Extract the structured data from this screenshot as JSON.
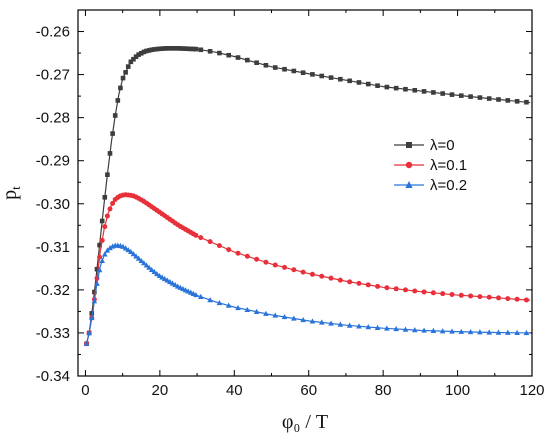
{
  "chart_data": {
    "type": "line",
    "xlabel": "φ₀ / T",
    "ylabel_main": "p",
    "ylabel_sub": "t",
    "xlim": [
      -2,
      120
    ],
    "ylim": [
      -0.34,
      -0.255
    ],
    "x_ticks": [
      0,
      20,
      40,
      60,
      80,
      100,
      120
    ],
    "y_ticks": [
      -0.34,
      -0.33,
      -0.32,
      -0.31,
      -0.3,
      -0.29,
      -0.28,
      -0.27,
      -0.26
    ],
    "x_tick_labels": [
      "0",
      "20",
      "40",
      "60",
      "80",
      "100",
      "120"
    ],
    "y_tick_labels": [
      "-0.34",
      "-0.33",
      "-0.32",
      "-0.31",
      "-0.30",
      "-0.29",
      "-0.28",
      "-0.27",
      "-0.26"
    ],
    "grid": false,
    "legend_position": "center-right",
    "series": [
      {
        "name": "λ=0",
        "color": "#3d3d3d",
        "marker": "square",
        "points": [
          [
            0.3,
            -0.3325
          ],
          [
            1,
            -0.33
          ],
          [
            2,
            -0.3235
          ],
          [
            3,
            -0.316
          ],
          [
            4,
            -0.308
          ],
          [
            5,
            -0.3
          ],
          [
            6,
            -0.2925
          ],
          [
            7,
            -0.2855
          ],
          [
            8,
            -0.2795
          ],
          [
            9,
            -0.2745
          ],
          [
            10,
            -0.271
          ],
          [
            12,
            -0.2672
          ],
          [
            14,
            -0.2655
          ],
          [
            16,
            -0.2646
          ],
          [
            18,
            -0.2642
          ],
          [
            20,
            -0.264
          ],
          [
            22,
            -0.2639
          ],
          [
            25,
            -0.2639
          ],
          [
            30,
            -0.2641
          ],
          [
            35,
            -0.2648
          ],
          [
            40,
            -0.2658
          ],
          [
            45,
            -0.267
          ],
          [
            50,
            -0.2682
          ],
          [
            60,
            -0.2698
          ],
          [
            70,
            -0.2713
          ],
          [
            80,
            -0.2728
          ],
          [
            90,
            -0.2738
          ],
          [
            100,
            -0.2748
          ],
          [
            110,
            -0.2757
          ],
          [
            119.5,
            -0.2765
          ]
        ]
      },
      {
        "name": "λ=0.1",
        "color": "#e8303a",
        "marker": "circle",
        "points": [
          [
            0.3,
            -0.3325
          ],
          [
            1,
            -0.33
          ],
          [
            2,
            -0.325
          ],
          [
            3,
            -0.318
          ],
          [
            4,
            -0.311
          ],
          [
            5,
            -0.306
          ],
          [
            6,
            -0.3025
          ],
          [
            7,
            -0.3003
          ],
          [
            8,
            -0.299
          ],
          [
            9,
            -0.2983
          ],
          [
            10,
            -0.298
          ],
          [
            11,
            -0.2979
          ],
          [
            12,
            -0.298
          ],
          [
            13,
            -0.2982
          ],
          [
            14,
            -0.2986
          ],
          [
            16,
            -0.2996
          ],
          [
            18,
            -0.3008
          ],
          [
            20,
            -0.302
          ],
          [
            25,
            -0.305
          ],
          [
            30,
            -0.3075
          ],
          [
            40,
            -0.3112
          ],
          [
            50,
            -0.314
          ],
          [
            60,
            -0.3162
          ],
          [
            70,
            -0.318
          ],
          [
            80,
            -0.3194
          ],
          [
            90,
            -0.3204
          ],
          [
            100,
            -0.3212
          ],
          [
            110,
            -0.3218
          ],
          [
            119.5,
            -0.3224
          ]
        ]
      },
      {
        "name": "λ=0.2",
        "color": "#2a74d9",
        "marker": "triangle",
        "points": [
          [
            0.3,
            -0.3325
          ],
          [
            1,
            -0.33
          ],
          [
            2,
            -0.325
          ],
          [
            3,
            -0.319
          ],
          [
            4,
            -0.3145
          ],
          [
            5,
            -0.312
          ],
          [
            6,
            -0.3107
          ],
          [
            7,
            -0.31
          ],
          [
            8,
            -0.3097
          ],
          [
            9,
            -0.3097
          ],
          [
            10,
            -0.3099
          ],
          [
            12,
            -0.311
          ],
          [
            14,
            -0.3125
          ],
          [
            16,
            -0.314
          ],
          [
            18,
            -0.3155
          ],
          [
            20,
            -0.3168
          ],
          [
            25,
            -0.3193
          ],
          [
            30,
            -0.3213
          ],
          [
            35,
            -0.3228
          ],
          [
            40,
            -0.324
          ],
          [
            50,
            -0.3258
          ],
          [
            60,
            -0.3272
          ],
          [
            70,
            -0.3282
          ],
          [
            80,
            -0.3289
          ],
          [
            90,
            -0.3294
          ],
          [
            100,
            -0.3297
          ],
          [
            110,
            -0.3299
          ],
          [
            119.5,
            -0.33
          ]
        ]
      }
    ]
  }
}
